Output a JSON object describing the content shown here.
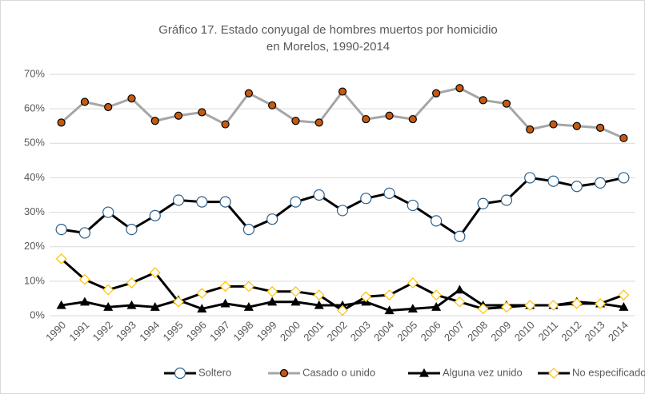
{
  "chart_data": {
    "type": "line",
    "title": [
      "Gráfico 17. Estado conyugal de hombres muertos por homicidio",
      "en Morelos, 1990-2014"
    ],
    "categories": [
      "1990",
      "1991",
      "1992",
      "1993",
      "1994",
      "1995",
      "1996",
      "1997",
      "1998",
      "1999",
      "2000",
      "2001",
      "2002",
      "2003",
      "2004",
      "2005",
      "2006",
      "2007",
      "2008",
      "2009",
      "2010",
      "2011",
      "2012",
      "2013",
      "2014"
    ],
    "series": [
      {
        "name": "Soltero",
        "color": "#000000",
        "marker": "circle",
        "marker_fill": "#ffffff",
        "marker_edge": "#2e5f8a",
        "values": [
          25,
          24,
          30,
          25,
          29,
          33.5,
          33,
          33,
          25,
          28,
          33,
          35,
          30.5,
          34,
          35.5,
          32,
          27.5,
          23,
          32.5,
          33.5,
          40,
          39,
          37.5,
          38.5,
          40
        ]
      },
      {
        "name": "Casado o unido",
        "color": "#a6a6a6",
        "marker": "circle",
        "marker_fill": "#c55a11",
        "marker_edge": "#000000",
        "values": [
          56,
          62,
          60.5,
          63,
          56.5,
          58,
          59,
          55.5,
          64.5,
          61,
          56.5,
          56,
          65,
          57,
          58,
          57,
          64.5,
          66,
          62.5,
          61.5,
          54,
          55.5,
          55,
          54.5,
          51.5
        ]
      },
      {
        "name": "Alguna vez unido",
        "color": "#000000",
        "marker": "triangle",
        "marker_fill": "#000000",
        "marker_edge": "#000000",
        "values": [
          3,
          4,
          2.5,
          3,
          2.5,
          4.5,
          2,
          3.5,
          2.5,
          4,
          4,
          3,
          3,
          4,
          1.5,
          2,
          2.5,
          7.5,
          3,
          3,
          3,
          3,
          4,
          3.5,
          2.5
        ]
      },
      {
        "name": "No especificado",
        "color": "#000000",
        "marker": "diamond",
        "marker_fill": "#ffffff",
        "marker_edge": "#ffc000",
        "values": [
          16.5,
          10.5,
          7.5,
          9.5,
          12.5,
          4,
          6.5,
          8.5,
          8.5,
          7,
          7,
          6,
          1.5,
          5.5,
          6,
          9.5,
          6,
          4,
          2,
          2.5,
          3,
          3,
          3.5,
          3.5,
          6
        ]
      }
    ],
    "ylim": [
      0,
      70
    ],
    "yticks": [
      {
        "value": 0,
        "label": "0%"
      },
      {
        "value": 10,
        "label": "10%"
      },
      {
        "value": 20,
        "label": "20%"
      },
      {
        "value": 30,
        "label": "30%"
      },
      {
        "value": 40,
        "label": "40%"
      },
      {
        "value": 50,
        "label": "50%"
      },
      {
        "value": 60,
        "label": "60%"
      },
      {
        "value": 70,
        "label": "70%"
      }
    ],
    "grid": true,
    "legend": "bottom"
  }
}
